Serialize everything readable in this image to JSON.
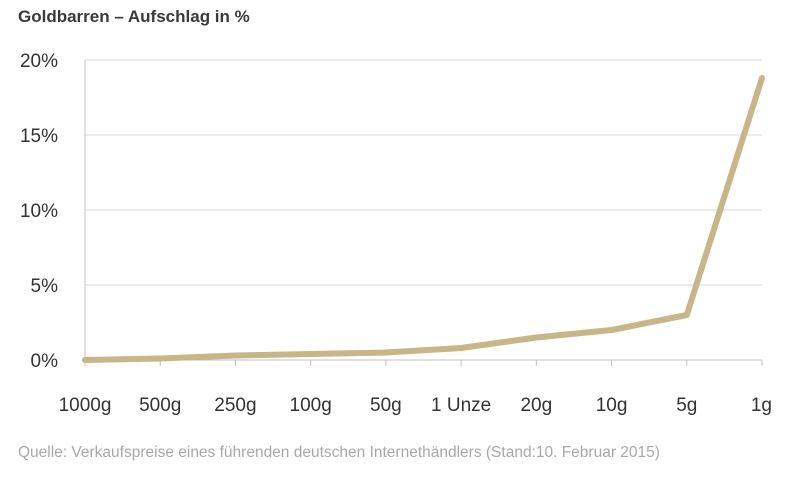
{
  "chart_data": {
    "type": "line",
    "title": "Goldbarren – Aufschlag in %",
    "categories": [
      "1000g",
      "500g",
      "250g",
      "100g",
      "50g",
      "1 Unze",
      "20g",
      "10g",
      "5g",
      "1g"
    ],
    "series": [
      {
        "values": [
          0.0,
          0.1,
          0.3,
          0.4,
          0.5,
          0.8,
          1.5,
          2.0,
          3.0,
          18.8
        ]
      }
    ],
    "y_ticks": [
      "0%",
      "5%",
      "10%",
      "15%",
      "20%"
    ],
    "ylim": [
      0,
      20
    ],
    "grid": true,
    "xlabel": "",
    "ylabel": "",
    "line_color": "#c8b588",
    "grid_color": "#d9d9d9",
    "axis_color": "#c0c0c0"
  },
  "source_note": "Quelle: Verkaufspreise eines führenden deutschen Internethändlers (Stand:10. Februar 2015)"
}
